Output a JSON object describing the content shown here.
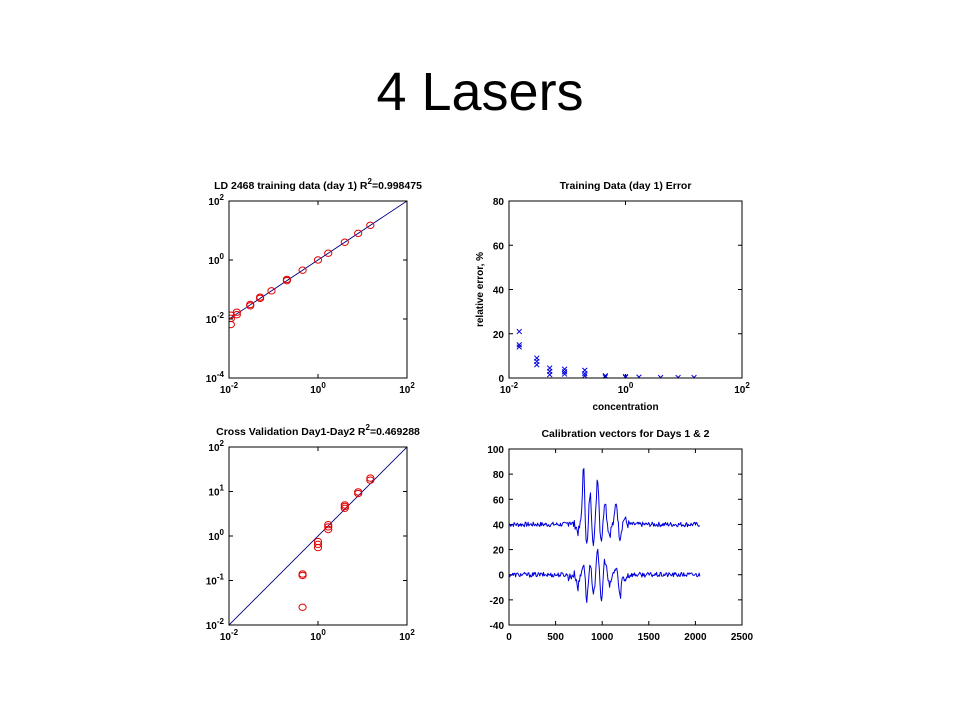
{
  "slide": {
    "title": "4 Lasers"
  },
  "chart_data": [
    {
      "type": "scatter",
      "title": "LD 2468 training data (day 1) R²=0.998475",
      "title_parts": {
        "before": "LD 2468 training data (day 1) R",
        "sup": "2",
        "after": "=0.998475"
      },
      "xscale": "log",
      "yscale": "log",
      "xlim": [
        0.01,
        100
      ],
      "ylim": [
        0.0001,
        100
      ],
      "xticks": [
        {
          "base": "10",
          "exp": "-2",
          "value": 0.01
        },
        {
          "base": "10",
          "exp": "0",
          "value": 1
        },
        {
          "base": "10",
          "exp": "2",
          "value": 100
        }
      ],
      "yticks": [
        {
          "base": "10",
          "exp": "-4",
          "value": 0.0001
        },
        {
          "base": "10",
          "exp": "-2",
          "value": 0.01
        },
        {
          "base": "10",
          "exp": "0",
          "value": 1
        },
        {
          "base": "10",
          "exp": "2",
          "value": 100
        }
      ],
      "marker": "circle",
      "marker_color": "#e00000",
      "line_color": "#00007f",
      "fit_line": [
        [
          0.01,
          0.01
        ],
        [
          100,
          100
        ]
      ],
      "points": [
        [
          0.011,
          0.0065
        ],
        [
          0.011,
          0.0105
        ],
        [
          0.011,
          0.0135
        ],
        [
          0.015,
          0.014
        ],
        [
          0.015,
          0.017
        ],
        [
          0.03,
          0.028
        ],
        [
          0.03,
          0.031
        ],
        [
          0.05,
          0.05
        ],
        [
          0.05,
          0.055
        ],
        [
          0.09,
          0.09
        ],
        [
          0.2,
          0.2
        ],
        [
          0.2,
          0.22
        ],
        [
          0.45,
          0.45
        ],
        [
          1.0,
          1.0
        ],
        [
          1.7,
          1.7
        ],
        [
          4.0,
          4.0
        ],
        [
          8.0,
          8.0
        ],
        [
          15,
          15
        ]
      ]
    },
    {
      "type": "scatter",
      "title": "Training Data (day 1) Error",
      "xlabel": "concentration",
      "ylabel": "relative error, %",
      "xscale": "log",
      "yscale": "linear",
      "xlim": [
        0.01,
        100
      ],
      "ylim": [
        0,
        80
      ],
      "xticks": [
        {
          "base": "10",
          "exp": "-2",
          "value": 0.01
        },
        {
          "base": "10",
          "exp": "0",
          "value": 1
        },
        {
          "base": "10",
          "exp": "2",
          "value": 100
        }
      ],
      "yticks": [
        {
          "label": "0",
          "value": 0
        },
        {
          "label": "20",
          "value": 20
        },
        {
          "label": "40",
          "value": 40
        },
        {
          "label": "60",
          "value": 60
        },
        {
          "label": "80",
          "value": 80
        }
      ],
      "marker": "x",
      "marker_color": "#0000dd",
      "points": [
        [
          0.015,
          21
        ],
        [
          0.015,
          15
        ],
        [
          0.015,
          14
        ],
        [
          0.03,
          9
        ],
        [
          0.03,
          7.5
        ],
        [
          0.03,
          6
        ],
        [
          0.05,
          4.5
        ],
        [
          0.05,
          3
        ],
        [
          0.05,
          1.5
        ],
        [
          0.09,
          4
        ],
        [
          0.09,
          2.8
        ],
        [
          0.09,
          1.8
        ],
        [
          0.2,
          3.5
        ],
        [
          0.2,
          2
        ],
        [
          0.2,
          1
        ],
        [
          0.45,
          1
        ],
        [
          0.45,
          0.5
        ],
        [
          1.0,
          0.6
        ],
        [
          1.0,
          0.3
        ],
        [
          1.7,
          0.4
        ],
        [
          4.0,
          0.2
        ],
        [
          8.0,
          0.2
        ],
        [
          15,
          0.2
        ]
      ]
    },
    {
      "type": "scatter",
      "title": "Cross Validation Day1-Day2 R²=0.469288",
      "title_parts": {
        "before": "Cross Validation Day1-Day2 R",
        "sup": "2",
        "after": "=0.469288"
      },
      "xscale": "log",
      "yscale": "log",
      "xlim": [
        0.01,
        100
      ],
      "ylim": [
        0.01,
        100
      ],
      "xticks": [
        {
          "base": "10",
          "exp": "-2",
          "value": 0.01
        },
        {
          "base": "10",
          "exp": "0",
          "value": 1
        },
        {
          "base": "10",
          "exp": "2",
          "value": 100
        }
      ],
      "yticks": [
        {
          "base": "10",
          "exp": "-2",
          "value": 0.01
        },
        {
          "base": "10",
          "exp": "-1",
          "value": 0.1
        },
        {
          "base": "10",
          "exp": "0",
          "value": 1
        },
        {
          "base": "10",
          "exp": "1",
          "value": 10
        },
        {
          "base": "10",
          "exp": "2",
          "value": 100
        }
      ],
      "marker": "circle",
      "marker_color": "#e00000",
      "line_color": "#00007f",
      "fit_line": [
        [
          0.01,
          0.01
        ],
        [
          100,
          100
        ]
      ],
      "points": [
        [
          0.45,
          0.025
        ],
        [
          0.45,
          0.13
        ],
        [
          0.45,
          0.14
        ],
        [
          1.0,
          0.55
        ],
        [
          1.0,
          0.65
        ],
        [
          1.0,
          0.75
        ],
        [
          1.7,
          1.4
        ],
        [
          1.7,
          1.6
        ],
        [
          1.7,
          1.8
        ],
        [
          4.0,
          4.2
        ],
        [
          4.0,
          4.6
        ],
        [
          4.0,
          5.0
        ],
        [
          8.0,
          9.0
        ],
        [
          8.0,
          9.8
        ],
        [
          15,
          18
        ],
        [
          15,
          20
        ]
      ]
    },
    {
      "type": "line",
      "title": "Calibration vectors for Days 1 & 2",
      "xscale": "linear",
      "yscale": "linear",
      "xlim": [
        0,
        2500
      ],
      "ylim": [
        -40,
        100
      ],
      "xticks": [
        {
          "label": "0",
          "value": 0
        },
        {
          "label": "500",
          "value": 500
        },
        {
          "label": "1000",
          "value": 1000
        },
        {
          "label": "1500",
          "value": 1500
        },
        {
          "label": "2000",
          "value": 2000
        },
        {
          "label": "2500",
          "value": 2500
        }
      ],
      "yticks": [
        {
          "label": "-40",
          "value": -40
        },
        {
          "label": "-20",
          "value": -20
        },
        {
          "label": "0",
          "value": 0
        },
        {
          "label": "20",
          "value": 20
        },
        {
          "label": "40",
          "value": 40
        },
        {
          "label": "60",
          "value": 60
        },
        {
          "label": "80",
          "value": 80
        },
        {
          "label": "100",
          "value": 100
        }
      ],
      "series": [
        {
          "color": "#0000dd",
          "x_range": [
            0,
            2048
          ],
          "baseline": 40,
          "noise": 1.2,
          "features": [
            [
              650,
              3
            ],
            [
              740,
              -6
            ],
            [
              800,
              44
            ],
            [
              835,
              -18
            ],
            [
              870,
              25
            ],
            [
              905,
              -14
            ],
            [
              950,
              38
            ],
            [
              990,
              -12
            ],
            [
              1030,
              20
            ],
            [
              1080,
              -8
            ],
            [
              1150,
              18
            ],
            [
              1190,
              -10
            ],
            [
              1240,
              5
            ]
          ]
        },
        {
          "color": "#0000dd",
          "x_range": [
            0,
            2048
          ],
          "baseline": 0,
          "noise": 1.2,
          "features": [
            [
              650,
              -2
            ],
            [
              740,
              -10
            ],
            [
              800,
              10
            ],
            [
              835,
              -20
            ],
            [
              870,
              8
            ],
            [
              905,
              -18
            ],
            [
              950,
              22
            ],
            [
              990,
              -22
            ],
            [
              1030,
              12
            ],
            [
              1080,
              -10
            ],
            [
              1150,
              6
            ],
            [
              1190,
              -18
            ],
            [
              1240,
              -4
            ]
          ]
        }
      ]
    }
  ]
}
